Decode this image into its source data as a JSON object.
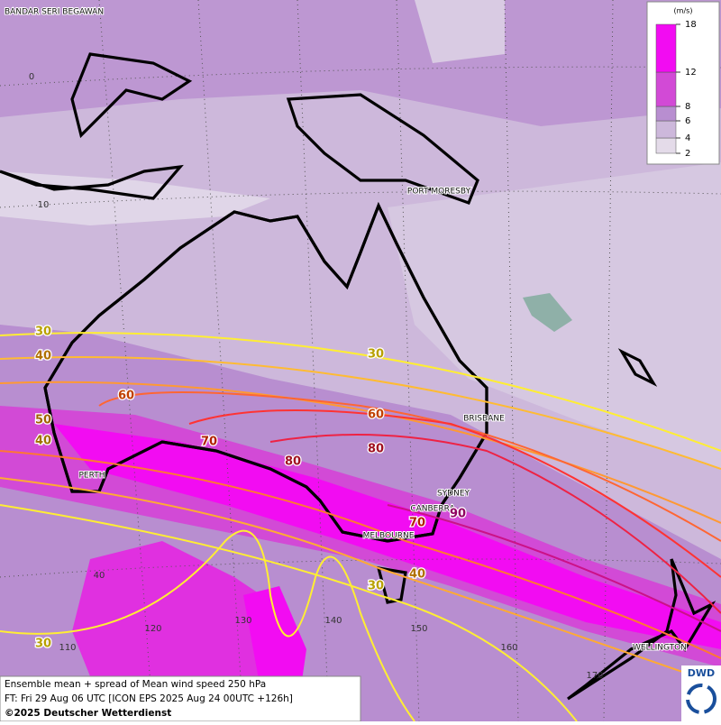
{
  "map": {
    "cities": [
      "BANDAR SERI BEGAWAN",
      "PORT MORESBY",
      "BRISBANE",
      "SYDNEY",
      "CANBERRA",
      "MELBOURNE",
      "PERTH",
      "WELLINGTON"
    ],
    "grid_labels": [
      "0",
      "10",
      "40",
      "110",
      "120",
      "130",
      "140",
      "150",
      "160",
      "170"
    ],
    "contour_labels": [
      "30",
      "40",
      "50",
      "40",
      "60",
      "70",
      "80",
      "30",
      "60",
      "80",
      "90",
      "70",
      "40",
      "30",
      "30"
    ]
  },
  "legend": {
    "unit": "(m/s)",
    "levels": [
      2,
      4,
      6,
      8,
      12,
      18
    ],
    "colors": [
      "#e4dbe9",
      "#cdb8db",
      "#b88ed0",
      "#d24ad6",
      "#f20cf2"
    ]
  },
  "footer": {
    "line1": "Ensemble mean + spread of Mean wind speed 250 hPa",
    "line2": "FT: Fri 29 Aug 06 UTC [ICON EPS 2025 Aug 24 00UTC +126h]",
    "line3": "©2025 Deutscher Wetterdienst",
    "logo": "DWD"
  }
}
